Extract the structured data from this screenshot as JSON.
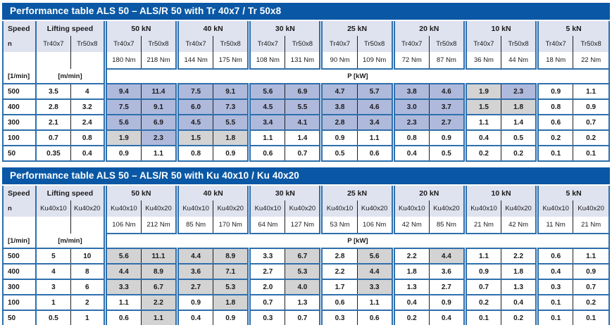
{
  "colors": {
    "title_bar": "#0a58a5",
    "border_blue": "#2e6fad",
    "header_bg": "#dfe2ef",
    "cell_blue": "#afb9dc",
    "cell_gray": "#d3d3d4",
    "text": "#1a1a1a"
  },
  "shade_legend": {
    "b": "blue-highlight",
    "g": "gray-highlight",
    "w": "none"
  },
  "tables": [
    {
      "title": "Performance table ALS 50 – ALS/R 50 with Tr 40x7 / Tr 50x8",
      "speed_label": "Speed",
      "speed_symbol": "n",
      "speed_unit": "[1/min]",
      "lifting_label": "Lifting speed",
      "lifting_unit": "[m/min]",
      "power_unit": "P [kW]",
      "screw_columns": [
        "Tr40x7",
        "Tr50x8"
      ],
      "load_groups": [
        {
          "load": "50 kN",
          "torques": [
            "180 Nm",
            "218 Nm"
          ]
        },
        {
          "load": "40 kN",
          "torques": [
            "144 Nm",
            "175 Nm"
          ]
        },
        {
          "load": "30 kN",
          "torques": [
            "108 Nm",
            "131 Nm"
          ]
        },
        {
          "load": "25 kN",
          "torques": [
            "90 Nm",
            "109 Nm"
          ]
        },
        {
          "load": "20 kN",
          "torques": [
            "72 Nm",
            "87 Nm"
          ]
        },
        {
          "load": "10 kN",
          "torques": [
            "36 Nm",
            "44 Nm"
          ]
        },
        {
          "load": "5 kN",
          "torques": [
            "18 Nm",
            "22 Nm"
          ]
        }
      ],
      "rows": [
        {
          "n": "500",
          "lifting": [
            "3.5",
            "4"
          ],
          "p": [
            "9.4",
            "11.4",
            "7.5",
            "9.1",
            "5.6",
            "6.9",
            "4.7",
            "5.7",
            "3.8",
            "4.6",
            "1.9",
            "2.3",
            "0.9",
            "1.1"
          ],
          "shade": [
            "b",
            "b",
            "b",
            "b",
            "b",
            "b",
            "b",
            "b",
            "b",
            "b",
            "g",
            "b",
            "w",
            "w"
          ]
        },
        {
          "n": "400",
          "lifting": [
            "2.8",
            "3.2"
          ],
          "p": [
            "7.5",
            "9.1",
            "6.0",
            "7.3",
            "4.5",
            "5.5",
            "3.8",
            "4.6",
            "3.0",
            "3.7",
            "1.5",
            "1.8",
            "0.8",
            "0.9"
          ],
          "shade": [
            "b",
            "b",
            "b",
            "b",
            "b",
            "b",
            "b",
            "b",
            "b",
            "b",
            "g",
            "g",
            "w",
            "w"
          ]
        },
        {
          "n": "300",
          "lifting": [
            "2.1",
            "2.4"
          ],
          "p": [
            "5.6",
            "6.9",
            "4.5",
            "5.5",
            "3.4",
            "4.1",
            "2.8",
            "3.4",
            "2.3",
            "2.7",
            "1.1",
            "1.4",
            "0.6",
            "0.7"
          ],
          "shade": [
            "b",
            "b",
            "b",
            "b",
            "b",
            "b",
            "b",
            "b",
            "b",
            "b",
            "w",
            "w",
            "w",
            "w"
          ]
        },
        {
          "n": "100",
          "lifting": [
            "0.7",
            "0.8"
          ],
          "p": [
            "1.9",
            "2.3",
            "1.5",
            "1.8",
            "1.1",
            "1.4",
            "0.9",
            "1.1",
            "0.8",
            "0.9",
            "0.4",
            "0.5",
            "0.2",
            "0.2"
          ],
          "shade": [
            "g",
            "b",
            "g",
            "g",
            "w",
            "w",
            "w",
            "w",
            "w",
            "w",
            "w",
            "w",
            "w",
            "w"
          ]
        },
        {
          "n": "50",
          "lifting": [
            "0.35",
            "0.4"
          ],
          "p": [
            "0.9",
            "1.1",
            "0.8",
            "0.9",
            "0.6",
            "0.7",
            "0.5",
            "0.6",
            "0.4",
            "0.5",
            "0.2",
            "0.2",
            "0.1",
            "0.1"
          ],
          "shade": [
            "w",
            "w",
            "w",
            "w",
            "w",
            "w",
            "w",
            "w",
            "w",
            "w",
            "w",
            "w",
            "w",
            "w"
          ]
        }
      ]
    },
    {
      "title": "Performance table ALS 50 – ALS/R 50 with Ku 40x10 / Ku 40x20",
      "speed_label": "Speed",
      "speed_symbol": "n",
      "speed_unit": "[1/min]",
      "lifting_label": "Lifting speed",
      "lifting_unit": "[m/min]",
      "power_unit": "P [kW]",
      "screw_columns": [
        "Ku40x10",
        "Ku40x20"
      ],
      "load_groups": [
        {
          "load": "50 kN",
          "torques": [
            "106 Nm",
            "212 Nm"
          ]
        },
        {
          "load": "40 kN",
          "torques": [
            "85 Nm",
            "170 Nm"
          ]
        },
        {
          "load": "30 kN",
          "torques": [
            "64 Nm",
            "127 Nm"
          ]
        },
        {
          "load": "25 kN",
          "torques": [
            "53 Nm",
            "106 Nm"
          ]
        },
        {
          "load": "20 kN",
          "torques": [
            "42 Nm",
            "85 Nm"
          ]
        },
        {
          "load": "10 kN",
          "torques": [
            "21 Nm",
            "42 Nm"
          ]
        },
        {
          "load": "5 kN",
          "torques": [
            "11 Nm",
            "21 Nm"
          ]
        }
      ],
      "rows": [
        {
          "n": "500",
          "lifting": [
            "5",
            "10"
          ],
          "p": [
            "5.6",
            "11.1",
            "4.4",
            "8.9",
            "3.3",
            "6.7",
            "2.8",
            "5.6",
            "2.2",
            "4.4",
            "1.1",
            "2.2",
            "0.6",
            "1.1"
          ],
          "shade": [
            "g",
            "g",
            "g",
            "g",
            "w",
            "g",
            "w",
            "g",
            "w",
            "g",
            "w",
            "w",
            "w",
            "w"
          ]
        },
        {
          "n": "400",
          "lifting": [
            "4",
            "8"
          ],
          "p": [
            "4.4",
            "8.9",
            "3.6",
            "7.1",
            "2.7",
            "5.3",
            "2.2",
            "4.4",
            "1.8",
            "3.6",
            "0.9",
            "1.8",
            "0.4",
            "0.9"
          ],
          "shade": [
            "g",
            "g",
            "g",
            "g",
            "w",
            "g",
            "w",
            "g",
            "w",
            "w",
            "w",
            "w",
            "w",
            "w"
          ]
        },
        {
          "n": "300",
          "lifting": [
            "3",
            "6"
          ],
          "p": [
            "3.3",
            "6.7",
            "2.7",
            "5.3",
            "2.0",
            "4.0",
            "1.7",
            "3.3",
            "1.3",
            "2.7",
            "0.7",
            "1.3",
            "0.3",
            "0.7"
          ],
          "shade": [
            "g",
            "g",
            "g",
            "g",
            "w",
            "g",
            "w",
            "g",
            "w",
            "w",
            "w",
            "w",
            "w",
            "w"
          ]
        },
        {
          "n": "100",
          "lifting": [
            "1",
            "2"
          ],
          "p": [
            "1.1",
            "2.2",
            "0.9",
            "1.8",
            "0.7",
            "1.3",
            "0.6",
            "1.1",
            "0.4",
            "0.9",
            "0.2",
            "0.4",
            "0.1",
            "0.2"
          ],
          "shade": [
            "w",
            "g",
            "w",
            "g",
            "w",
            "w",
            "w",
            "w",
            "w",
            "w",
            "w",
            "w",
            "w",
            "w"
          ]
        },
        {
          "n": "50",
          "lifting": [
            "0.5",
            "1"
          ],
          "p": [
            "0.6",
            "1.1",
            "0.4",
            "0.9",
            "0.3",
            "0.7",
            "0.3",
            "0.6",
            "0.2",
            "0.4",
            "0.1",
            "0.2",
            "0.1",
            "0.1"
          ],
          "shade": [
            "w",
            "g",
            "w",
            "w",
            "w",
            "w",
            "w",
            "w",
            "w",
            "w",
            "w",
            "w",
            "w",
            "w"
          ]
        }
      ]
    }
  ]
}
